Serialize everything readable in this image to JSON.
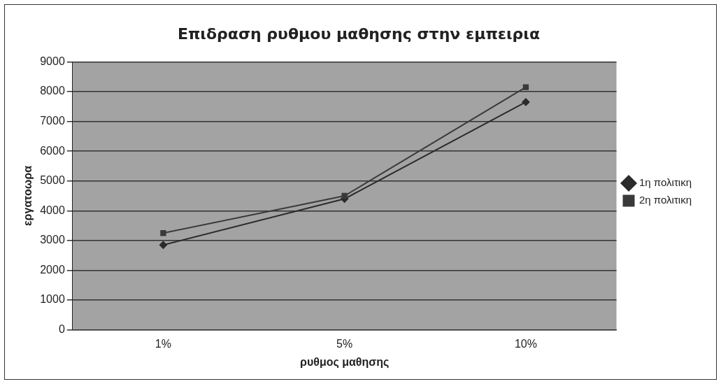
{
  "chart_data": {
    "type": "line",
    "title": "Επιδραση ρυθμου μαθησης στην εμπειρια",
    "xlabel": "ρυθμος μαθησης",
    "ylabel": "εργατοωρα",
    "categories": [
      "1%",
      "5%",
      "10%"
    ],
    "series": [
      {
        "name": "1η πολιτικη",
        "color": "#2b2b2b",
        "marker": "diamond",
        "values": [
          2850,
          4400,
          7650
        ]
      },
      {
        "name": "2η πολιτικη",
        "color": "#3a3a3a",
        "marker": "square",
        "values": [
          3250,
          4500,
          8150
        ]
      }
    ],
    "ylim": [
      0,
      9000
    ],
    "yticks": [
      0,
      1000,
      2000,
      3000,
      4000,
      5000,
      6000,
      7000,
      8000,
      9000
    ],
    "grid": "y",
    "legend": "right",
    "line_style": "solid"
  }
}
